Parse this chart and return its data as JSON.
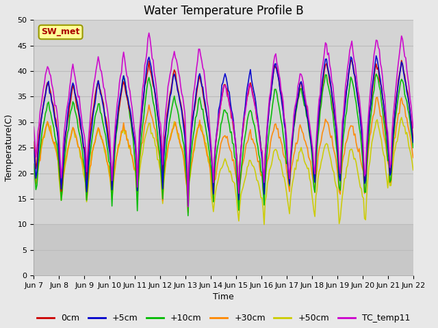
{
  "title": "Water Temperature Profile B",
  "xlabel": "Time",
  "ylabel": "Temperature(C)",
  "ylim": [
    0,
    50
  ],
  "yticks": [
    0,
    5,
    10,
    15,
    20,
    25,
    30,
    35,
    40,
    45,
    50
  ],
  "x_labels": [
    "Jun 7",
    "Jun 8",
    "Jun 9",
    "Jun 10",
    "Jun 11",
    "Jun 12",
    "Jun 13",
    "Jun 14",
    "Jun 15",
    "Jun 16",
    "Jun 17",
    "Jun 18",
    "Jun 19",
    "Jun 20",
    "Jun 21",
    "Jun 22"
  ],
  "series_order": [
    "0cm",
    "+5cm",
    "+10cm",
    "+30cm",
    "+50cm",
    "TC_temp11"
  ],
  "series": {
    "0cm": {
      "color": "#cc0000",
      "lw": 1.2
    },
    "+5cm": {
      "color": "#0000cc",
      "lw": 1.2
    },
    "+10cm": {
      "color": "#00bb00",
      "lw": 1.2
    },
    "+30cm": {
      "color": "#ff8800",
      "lw": 1.2
    },
    "+50cm": {
      "color": "#cccc00",
      "lw": 1.2
    },
    "TC_temp11": {
      "color": "#cc00cc",
      "lw": 1.2
    }
  },
  "annotation": {
    "text": "SW_met",
    "fontsize": 9,
    "color": "#aa0000",
    "bbox_facecolor": "#ffff99",
    "bbox_edgecolor": "#999900"
  },
  "fig_bg_color": "#e8e8e8",
  "plot_bg_color": "#d4d4d4",
  "plot_bg_low_color": "#c8c8c8",
  "grid_color": "#bbbbbb",
  "title_fontsize": 12,
  "axis_fontsize": 9,
  "tick_fontsize": 8,
  "legend_fontsize": 9
}
